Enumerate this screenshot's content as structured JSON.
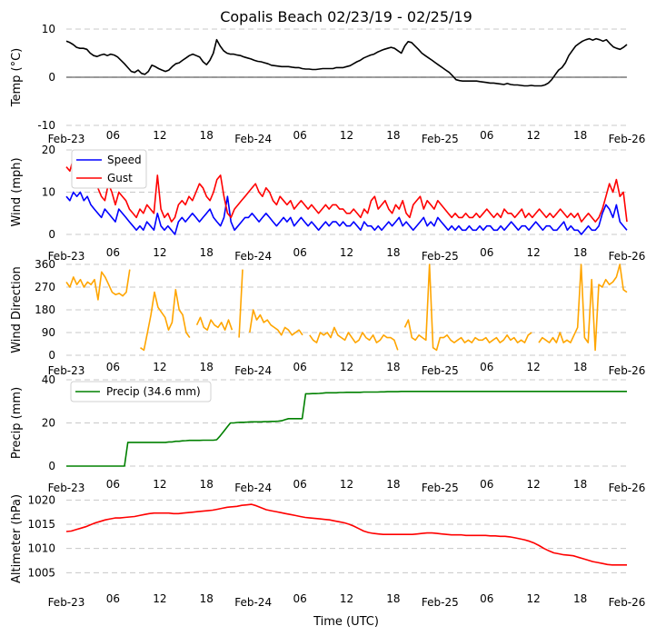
{
  "title": "Copalis Beach 02/23/19 - 02/25/19",
  "xlabel": "Time (UTC)",
  "x_tick_labels": [
    "Feb-23",
    "06",
    "12",
    "18",
    "Feb-24",
    "06",
    "12",
    "18",
    "Feb-25",
    "06",
    "12",
    "18",
    "Feb-26"
  ],
  "colors": {
    "temp": "#000000",
    "speed": "#0000ff",
    "gust": "#ff0000",
    "direction": "#ffa500",
    "precip": "#008000",
    "altimeter": "#ff0000",
    "grid": "#c8c8c8"
  },
  "chart_data": [
    {
      "type": "line",
      "ylabel": "Temp (°C)",
      "ylim": [
        -10,
        10
      ],
      "yticks": [
        "-10",
        "0",
        "10"
      ],
      "zero_line": true,
      "series": [
        {
          "values": [
            7.5,
            7.2,
            6.8,
            6.2,
            6,
            6,
            5.8,
            5,
            4.5,
            4.3,
            4.6,
            4.8,
            4.5,
            4.8,
            4.6,
            4.2,
            3.5,
            2.8,
            2,
            1.2,
            1,
            1.5,
            0.8,
            0.6,
            1.2,
            2.5,
            2.2,
            1.8,
            1.5,
            1.2,
            1.5,
            2.2,
            2.8,
            3,
            3.5,
            4,
            4.5,
            4.8,
            4.5,
            4.2,
            3.2,
            2.6,
            3.5,
            5,
            7.8,
            6.5,
            5.5,
            5,
            4.8,
            4.8,
            4.6,
            4.5,
            4.2,
            4,
            3.8,
            3.5,
            3.3,
            3.2,
            3,
            2.8,
            2.5,
            2.4,
            2.3,
            2.2,
            2.2,
            2.2,
            2.1,
            2,
            2,
            1.8,
            1.7,
            1.7,
            1.6,
            1.6,
            1.7,
            1.8,
            1.8,
            1.8,
            1.8,
            2,
            2,
            2,
            2.2,
            2.4,
            2.8,
            3.2,
            3.5,
            4,
            4.3,
            4.6,
            4.8,
            5.2,
            5.5,
            5.8,
            6,
            6.2,
            6,
            5.5,
            5,
            6.5,
            7.4,
            7.2,
            6.5,
            5.8,
            5,
            4.5,
            4,
            3.5,
            3,
            2.5,
            2,
            1.5,
            1,
            0.3,
            -0.5,
            -0.7,
            -0.8,
            -0.8,
            -0.8,
            -0.8,
            -0.8,
            -0.9,
            -1,
            -1.1,
            -1.2,
            -1.2,
            -1.3,
            -1.4,
            -1.5,
            -1.3,
            -1.5,
            -1.6,
            -1.6,
            -1.7,
            -1.8,
            -1.8,
            -1.7,
            -1.8,
            -1.8,
            -1.8,
            -1.6,
            -1.2,
            -0.5,
            0.5,
            1.5,
            2,
            3,
            4.5,
            5.5,
            6.5,
            7,
            7.5,
            7.8,
            8,
            7.7,
            8,
            7.8,
            7.5,
            7.8,
            7,
            6.3,
            6,
            5.8,
            6.2,
            6.8
          ]
        }
      ]
    },
    {
      "type": "line",
      "ylabel": "Wind (mph)",
      "ylim": [
        0,
        20
      ],
      "yticks": [
        "0",
        "10",
        "20"
      ],
      "zero_line": false,
      "series": [
        {
          "name": "Speed",
          "values": [
            9,
            8,
            10,
            9,
            10,
            8,
            9,
            7,
            6,
            5,
            4,
            6,
            5,
            4,
            3,
            6,
            5,
            4,
            3,
            2,
            1,
            2,
            1,
            3,
            2,
            1,
            5,
            2,
            1,
            2,
            1,
            0,
            3,
            4,
            3,
            4,
            5,
            4,
            3,
            4,
            5,
            6,
            4,
            3,
            2,
            4,
            9,
            3,
            1,
            2,
            3,
            4,
            4,
            5,
            4,
            3,
            4,
            5,
            4,
            3,
            2,
            3,
            4,
            3,
            4,
            2,
            3,
            4,
            3,
            2,
            3,
            2,
            1,
            2,
            3,
            2,
            3,
            3,
            2,
            3,
            2,
            2,
            3,
            2,
            1,
            3,
            2,
            2,
            1,
            2,
            1,
            2,
            3,
            2,
            3,
            4,
            2,
            3,
            2,
            1,
            2,
            3,
            4,
            2,
            3,
            2,
            4,
            3,
            2,
            1,
            2,
            1,
            2,
            1,
            1,
            2,
            1,
            1,
            2,
            1,
            2,
            2,
            1,
            1,
            2,
            1,
            2,
            3,
            2,
            1,
            2,
            2,
            1,
            2,
            3,
            2,
            1,
            2,
            2,
            1,
            1,
            2,
            3,
            1,
            2,
            1,
            1,
            0,
            1,
            2,
            1,
            1,
            2,
            5,
            7,
            6,
            4,
            7,
            3,
            2,
            1
          ]
        },
        {
          "name": "Gust",
          "values": [
            16,
            15,
            18,
            14,
            15,
            13,
            16,
            15,
            12,
            11,
            9,
            8,
            12,
            10,
            7,
            10,
            9,
            8,
            6,
            5,
            4,
            6,
            5,
            7,
            6,
            5,
            14,
            6,
            4,
            5,
            3,
            4,
            7,
            8,
            7,
            9,
            8,
            10,
            12,
            11,
            9,
            8,
            10,
            13,
            14,
            9,
            5,
            4,
            6,
            7,
            8,
            9,
            10,
            11,
            12,
            10,
            9,
            11,
            10,
            8,
            7,
            9,
            8,
            7,
            8,
            6,
            7,
            8,
            7,
            6,
            7,
            6,
            5,
            6,
            7,
            6,
            7,
            7,
            6,
            6,
            5,
            5,
            6,
            5,
            4,
            6,
            5,
            8,
            9,
            6,
            7,
            8,
            6,
            5,
            7,
            6,
            8,
            5,
            4,
            7,
            8,
            9,
            6,
            8,
            7,
            6,
            8,
            7,
            6,
            5,
            4,
            5,
            4,
            4,
            5,
            4,
            4,
            5,
            4,
            5,
            6,
            5,
            4,
            5,
            4,
            6,
            5,
            5,
            4,
            5,
            6,
            4,
            5,
            4,
            5,
            6,
            5,
            4,
            5,
            4,
            5,
            6,
            5,
            4,
            5,
            4,
            5,
            3,
            4,
            5,
            4,
            3,
            4,
            6,
            9,
            12,
            10,
            13,
            9,
            10,
            3
          ]
        }
      ]
    },
    {
      "type": "line",
      "ylabel": "Wind Direction",
      "ylim": [
        0,
        360
      ],
      "yticks": [
        "0",
        "90",
        "180",
        "270",
        "360"
      ],
      "zero_line": false,
      "series": [
        {
          "values": [
            290,
            270,
            310,
            280,
            300,
            270,
            290,
            280,
            300,
            220,
            330,
            310,
            280,
            250,
            240,
            245,
            235,
            250,
            340,
            null,
            null,
            30,
            20,
            90,
            160,
            250,
            190,
            170,
            150,
            100,
            130,
            260,
            180,
            160,
            90,
            70,
            null,
            120,
            150,
            110,
            100,
            140,
            120,
            110,
            130,
            100,
            140,
            100,
            null,
            70,
            340,
            null,
            90,
            180,
            140,
            160,
            130,
            140,
            120,
            110,
            100,
            80,
            110,
            100,
            80,
            90,
            100,
            80,
            null,
            80,
            60,
            50,
            90,
            80,
            90,
            70,
            110,
            80,
            70,
            60,
            90,
            70,
            50,
            60,
            90,
            70,
            60,
            80,
            50,
            60,
            80,
            70,
            70,
            60,
            20,
            null,
            110,
            140,
            70,
            60,
            80,
            70,
            60,
            360,
            30,
            20,
            70,
            70,
            80,
            60,
            50,
            60,
            70,
            50,
            60,
            50,
            70,
            60,
            60,
            70,
            50,
            60,
            70,
            50,
            60,
            80,
            60,
            70,
            50,
            60,
            50,
            80,
            90,
            null,
            50,
            70,
            60,
            50,
            70,
            50,
            90,
            50,
            60,
            50,
            80,
            110,
            360,
            70,
            50,
            300,
            20,
            280,
            270,
            300,
            280,
            290,
            310,
            360,
            260,
            250
          ]
        }
      ]
    },
    {
      "type": "line",
      "ylabel": "Precip (mm)",
      "ylim": [
        0,
        40
      ],
      "yticks": [
        "0",
        "20",
        "40"
      ],
      "zero_line": false,
      "series": [
        {
          "name": "Precip (34.6 mm)",
          "values": [
            0,
            0,
            0,
            0,
            0,
            0,
            0,
            0,
            0,
            0,
            0,
            0,
            0,
            0,
            0,
            0,
            0,
            0,
            11,
            11,
            11,
            11,
            11,
            11,
            11,
            11,
            11,
            11,
            11,
            11,
            11.2,
            11.2,
            11.5,
            11.5,
            11.7,
            11.8,
            11.9,
            11.9,
            11.9,
            11.9,
            12,
            12,
            12,
            12,
            12.2,
            14,
            16,
            18,
            20,
            20,
            20.2,
            20.3,
            20.3,
            20.4,
            20.5,
            20.5,
            20.5,
            20.5,
            20.6,
            20.6,
            20.7,
            20.7,
            20.8,
            21,
            21.5,
            22,
            22,
            22,
            22,
            22,
            33.5,
            33.5,
            33.6,
            33.6,
            33.7,
            33.8,
            34,
            34,
            34,
            34,
            34.1,
            34.1,
            34.2,
            34.2,
            34.2,
            34.2,
            34.2,
            34.3,
            34.3,
            34.3,
            34.3,
            34.3,
            34.4,
            34.4,
            34.5,
            34.5,
            34.5,
            34.5,
            34.6,
            34.6,
            34.6,
            34.6,
            34.6,
            34.6,
            34.6,
            34.6,
            34.6,
            34.6,
            34.6,
            34.6,
            34.6,
            34.6,
            34.6,
            34.6,
            34.6,
            34.6,
            34.6,
            34.6,
            34.6,
            34.6,
            34.6,
            34.6,
            34.6,
            34.6,
            34.6,
            34.6,
            34.6,
            34.6,
            34.6,
            34.6,
            34.6,
            34.6,
            34.6,
            34.6,
            34.6,
            34.6,
            34.6,
            34.6,
            34.6,
            34.6,
            34.6,
            34.6,
            34.6,
            34.6,
            34.6,
            34.6,
            34.6,
            34.6,
            34.6,
            34.6,
            34.6,
            34.6,
            34.6,
            34.6,
            34.6,
            34.6,
            34.6,
            34.6,
            34.6,
            34.6,
            34.6,
            34.6,
            34.6,
            34.6,
            34.6
          ]
        }
      ]
    },
    {
      "type": "line",
      "ylabel": "Altimeter (hPa)",
      "ylim": [
        1003,
        1021
      ],
      "yticks": [
        "1005",
        "1010",
        "1015",
        "1020"
      ],
      "zero_line": false,
      "series": [
        {
          "values": [
            1013.5,
            1013.6,
            1013.9,
            1014.2,
            1014.5,
            1014.9,
            1015.3,
            1015.6,
            1015.9,
            1016.1,
            1016.3,
            1016.3,
            1016.4,
            1016.5,
            1016.6,
            1016.8,
            1017.0,
            1017.2,
            1017.3,
            1017.3,
            1017.3,
            1017.3,
            1017.2,
            1017.2,
            1017.3,
            1017.4,
            1017.5,
            1017.6,
            1017.7,
            1017.8,
            1017.9,
            1018.1,
            1018.3,
            1018.5,
            1018.6,
            1018.7,
            1018.9,
            1019.0,
            1019.1,
            1018.8,
            1018.4,
            1018.0,
            1017.8,
            1017.6,
            1017.4,
            1017.2,
            1017.0,
            1016.8,
            1016.6,
            1016.4,
            1016.3,
            1016.2,
            1016.1,
            1016.0,
            1015.9,
            1015.7,
            1015.5,
            1015.3,
            1015.0,
            1014.6,
            1014.1,
            1013.6,
            1013.3,
            1013.1,
            1013.0,
            1012.9,
            1012.9,
            1012.9,
            1012.9,
            1012.9,
            1012.9,
            1012.9,
            1013.0,
            1013.1,
            1013.2,
            1013.2,
            1013.1,
            1013.0,
            1012.9,
            1012.8,
            1012.8,
            1012.8,
            1012.7,
            1012.7,
            1012.7,
            1012.7,
            1012.7,
            1012.6,
            1012.6,
            1012.5,
            1012.5,
            1012.4,
            1012.2,
            1012.0,
            1011.8,
            1011.5,
            1011.1,
            1010.6,
            1010.0,
            1009.5,
            1009.1,
            1008.9,
            1008.7,
            1008.6,
            1008.5,
            1008.2,
            1007.9,
            1007.6,
            1007.3,
            1007.1,
            1006.9,
            1006.7,
            1006.6,
            1006.6,
            1006.6,
            1006.6
          ]
        }
      ]
    }
  ]
}
